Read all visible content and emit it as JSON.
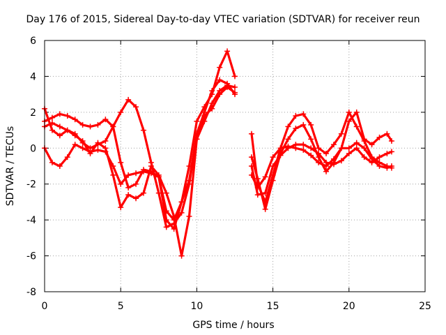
{
  "chart_data": {
    "type": "scatter",
    "title": "Day 176 of 2015, Sidereal Day-to-day VTEC variation (SDTVAR) for receiver reun",
    "xlabel": "GPS time / hours",
    "ylabel": "SDTVAR / TECUs",
    "xlim": [
      0,
      25
    ],
    "ylim": [
      -8,
      6
    ],
    "xticks": [
      "0",
      "5",
      "10",
      "15",
      "20",
      "25"
    ],
    "yticks": [
      "-8",
      "-6",
      "-4",
      "-2",
      "0",
      "2",
      "4",
      "6"
    ],
    "grid": true,
    "marker": "plus",
    "color": "#ff0000",
    "series": [
      {
        "name": "s1",
        "x": [
          0,
          0.5,
          1,
          1.5,
          2,
          2.5,
          3,
          3.5,
          4,
          4.5,
          5,
          5.5,
          6,
          6.5,
          7,
          7.5,
          8,
          8.5,
          9,
          9.5,
          10,
          10.5,
          11,
          11.5,
          12,
          12.5
        ],
        "y": [
          1.5,
          1.7,
          1.9,
          1.8,
          1.6,
          1.3,
          1.2,
          1.3,
          1.6,
          1.2,
          -0.8,
          -2.2,
          -2.0,
          -1.2,
          -1.3,
          -1.6,
          -3.5,
          -4.0,
          -3.0,
          -1.0,
          1.5,
          2.3,
          3.0,
          4.5,
          5.4,
          4.0
        ]
      },
      {
        "name": "s2",
        "x": [
          0,
          0.5,
          1,
          1.5,
          2,
          2.5,
          3,
          3.5,
          4,
          4.5,
          5,
          5.5,
          6,
          6.5,
          7,
          7.5,
          8,
          8.5,
          9,
          9.5,
          10,
          10.5,
          11,
          11.5,
          12,
          12.5
        ],
        "y": [
          1.2,
          1.4,
          1.2,
          1.0,
          0.8,
          0.3,
          0.0,
          0.2,
          0.4,
          1.2,
          2.0,
          2.7,
          2.3,
          1.0,
          -0.8,
          -2.5,
          -4.4,
          -4.2,
          -3.6,
          -2.0,
          0.5,
          1.5,
          2.5,
          3.2,
          3.5,
          3.4
        ]
      },
      {
        "name": "s3",
        "x": [
          0,
          0.5,
          1,
          1.5,
          2,
          2.5,
          3,
          3.5,
          4,
          4.5,
          5,
          5.5,
          6,
          6.5,
          7,
          7.5,
          8,
          8.5,
          9,
          9.5,
          10,
          10.5,
          11,
          11.5,
          12,
          12.5
        ],
        "y": [
          2.2,
          1.0,
          0.7,
          1.0,
          0.7,
          0.4,
          -0.3,
          0.3,
          0.0,
          -1.5,
          -3.3,
          -2.6,
          -2.8,
          -2.5,
          -1.0,
          -1.5,
          -2.5,
          -3.8,
          -6.0,
          -3.8,
          0.5,
          1.8,
          2.2,
          3.0,
          3.4,
          3.1
        ]
      },
      {
        "name": "s4",
        "x": [
          0,
          0.5,
          1,
          1.5,
          2,
          2.5,
          3,
          3.5,
          4,
          4.5,
          5,
          5.5,
          6,
          6.5,
          7,
          7.5,
          8,
          8.5,
          9,
          9.5,
          10,
          10.5,
          11,
          11.5,
          12,
          12.5
        ],
        "y": [
          0.0,
          -0.8,
          -1.0,
          -0.5,
          0.2,
          0.0,
          -0.2,
          -0.1,
          -0.2,
          -1.0,
          -2.0,
          -1.5,
          -1.4,
          -1.3,
          -1.4,
          -1.6,
          -4.0,
          -4.5,
          -3.0,
          -1.8,
          0.8,
          2.0,
          3.2,
          3.8,
          3.6,
          3.0
        ]
      },
      {
        "name": "s5",
        "x": [
          13.6,
          14,
          14.5,
          15,
          15.5,
          16,
          16.5,
          17,
          17.5,
          18,
          18.5,
          19,
          19.5,
          20,
          20.5,
          21,
          21.5,
          22,
          22.5,
          22.8
        ],
        "y": [
          0.8,
          -2.0,
          -3.0,
          -1.5,
          0.0,
          1.2,
          1.8,
          1.9,
          1.3,
          0.0,
          -0.3,
          0.2,
          0.8,
          2.0,
          1.2,
          0.4,
          -0.5,
          -0.8,
          -1.0,
          -1.1
        ]
      },
      {
        "name": "s6",
        "x": [
          13.6,
          14,
          14.5,
          15,
          15.5,
          16,
          16.5,
          17,
          17.5,
          18,
          18.5,
          19,
          19.5,
          20,
          20.5,
          21,
          21.5,
          22,
          22.5,
          22.8
        ],
        "y": [
          -0.5,
          -1.7,
          -3.4,
          -1.8,
          -0.3,
          0.5,
          1.1,
          1.3,
          0.5,
          -0.5,
          -1.3,
          -0.8,
          0.0,
          0.0,
          0.3,
          0.0,
          -0.6,
          -1.0,
          -1.1,
          -1.0
        ]
      },
      {
        "name": "s7",
        "x": [
          13.6,
          14,
          14.5,
          15,
          15.5,
          16,
          16.5,
          17,
          17.5,
          18,
          18.5,
          19,
          19.5,
          20,
          20.5,
          21,
          21.5,
          22,
          22.5,
          22.8
        ],
        "y": [
          -1.0,
          -2.6,
          -2.5,
          -1.0,
          -0.4,
          0.0,
          0.2,
          0.2,
          0.0,
          -0.3,
          -0.8,
          -0.9,
          -0.7,
          -0.3,
          0.0,
          -0.5,
          -0.8,
          -0.5,
          -0.3,
          -0.2
        ]
      },
      {
        "name": "s8",
        "x": [
          13.6,
          14,
          14.5,
          15,
          15.5,
          16,
          16.5,
          17,
          17.5,
          18,
          18.5,
          19,
          19.5,
          20,
          20.5,
          21,
          21.5,
          22,
          22.5,
          22.8
        ],
        "y": [
          -1.5,
          -2.2,
          -1.6,
          -0.5,
          0.0,
          0.1,
          0.0,
          -0.1,
          -0.4,
          -0.8,
          -1.0,
          -0.6,
          0.0,
          1.5,
          2.0,
          0.5,
          0.2,
          0.6,
          0.8,
          0.4
        ]
      }
    ]
  }
}
